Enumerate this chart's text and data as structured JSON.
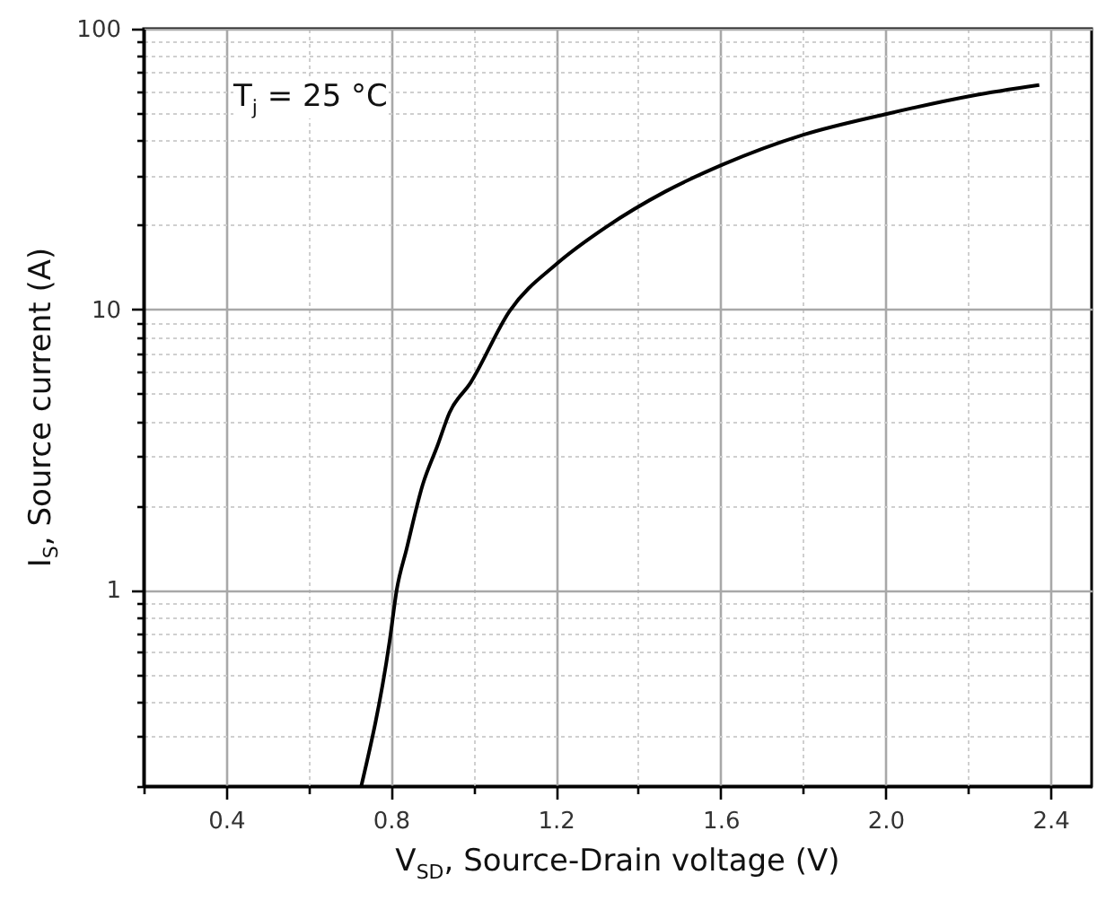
{
  "chart_data": {
    "type": "line",
    "xlabel": "V$_{SD}$, Source-Drain voltage (V)",
    "ylabel": "I$_{S}$, Source current (A)",
    "annotations": [
      "T$_{j}$ = 25 °C"
    ],
    "series": [
      {
        "color": "#000000",
        "x": [
          0.728,
          0.797,
          0.814,
          0.838,
          0.877,
          0.913,
          0.942,
          0.993,
          1.088,
          1.204,
          1.321,
          1.466,
          1.605,
          1.801,
          2.005,
          2.209,
          2.373
        ],
        "values": [
          0.2,
          0.66,
          1.0,
          1.4,
          2.37,
          3.27,
          4.28,
          5.47,
          9.86,
          14.6,
          19.6,
          26.3,
          32.8,
          41.9,
          49.8,
          57.7,
          63.0
        ]
      }
    ],
    "xlim": [
      0.2,
      2.5
    ],
    "xticks": [
      {
        "value": 0.2,
        "label": null
      },
      0.4,
      {
        "value": 0.6,
        "label": null
      },
      0.8,
      {
        "value": 1.0,
        "label": null
      },
      1.2,
      {
        "value": 1.4,
        "label": null
      },
      1.6,
      {
        "value": 1.8,
        "label": null
      },
      {
        "value": 2.0,
        "label": "2.0"
      },
      {
        "value": 2.2,
        "label": null
      },
      2.4
    ],
    "ylim": [
      0.2,
      100
    ],
    "yticks": [
      {
        "value": 0.2,
        "label": null
      },
      {
        "value": 0.3,
        "label": null
      },
      {
        "value": 0.4,
        "label": null
      },
      {
        "value": 0.5,
        "label": null
      },
      {
        "value": 0.6,
        "label": null
      },
      {
        "value": 0.7,
        "label": null
      },
      {
        "value": 0.8,
        "label": null
      },
      {
        "value": 0.9,
        "label": null
      },
      1,
      {
        "value": 2,
        "label": null
      },
      {
        "value": 3,
        "label": null
      },
      {
        "value": 4,
        "label": null
      },
      {
        "value": 5,
        "label": null
      },
      {
        "value": 6,
        "label": null
      },
      {
        "value": 7,
        "label": null
      },
      {
        "value": 8,
        "label": null
      },
      {
        "value": 9,
        "label": null
      },
      10,
      {
        "value": 20,
        "label": null
      },
      {
        "value": 30,
        "label": null
      },
      {
        "value": 40,
        "label": null
      },
      {
        "value": 50,
        "label": null
      },
      {
        "value": 60,
        "label": null
      },
      {
        "value": 70,
        "label": null
      },
      {
        "value": 80,
        "label": null
      },
      {
        "value": 90,
        "label": null
      },
      100
    ],
    "log": "y",
    "grid": true,
    "marker": "none",
    "line_style": "solid"
  }
}
